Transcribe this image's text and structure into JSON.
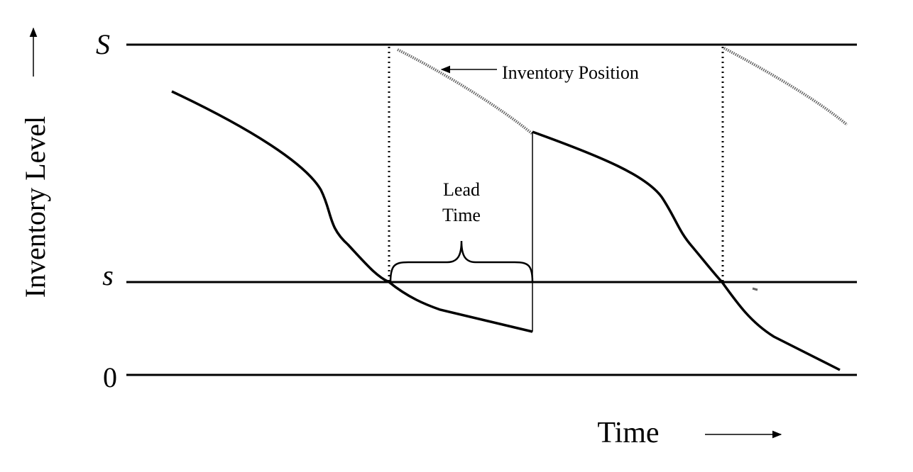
{
  "axis_labels": {
    "y": "Inventory Level",
    "x": "Time"
  },
  "levels": {
    "max": "S",
    "reorder": "s",
    "zero": "0"
  },
  "annotations": {
    "inventory_position": "Inventory Position",
    "lead_time": [
      "Lead",
      "Time"
    ]
  }
}
